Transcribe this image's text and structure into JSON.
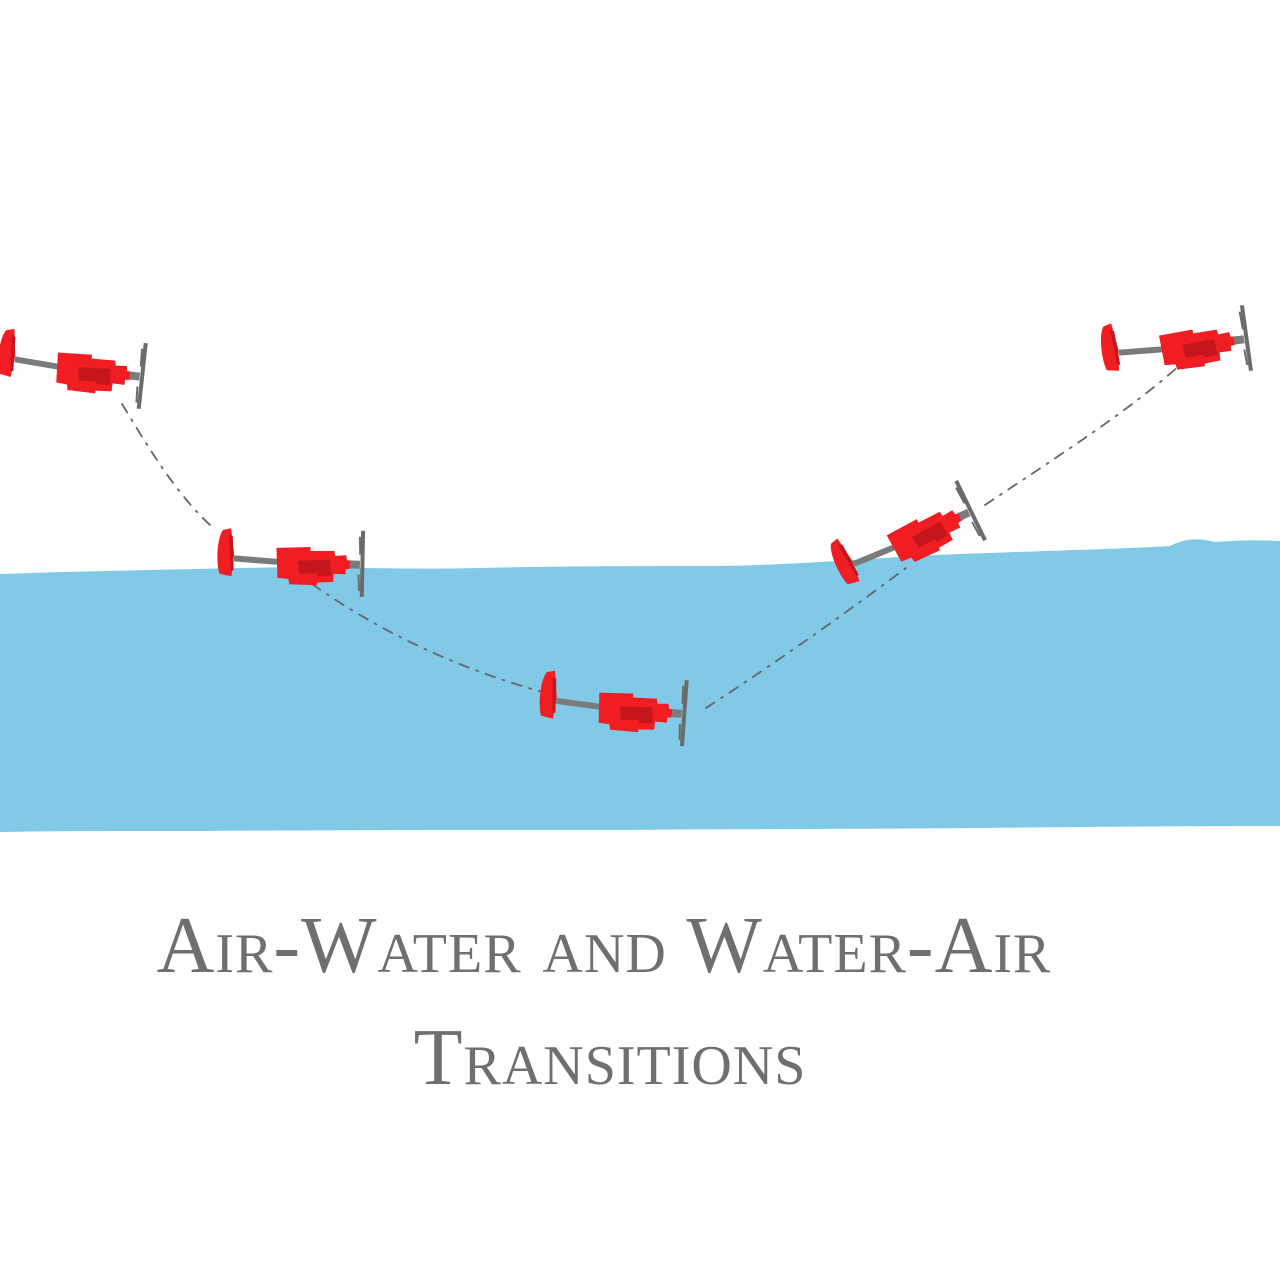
{
  "caption": {
    "line1": "Air-Water and Water-Air",
    "line2": "Transitions"
  },
  "colors": {
    "water": "#80c9e7",
    "vehicle_body": "#f01e22",
    "vehicle_dark": "#c5161b",
    "vehicle_shaft": "#7b7b7b",
    "propeller": "#6b6b6b",
    "trajectory": "#666666",
    "caption_text": "#6f6f6f"
  },
  "vehicles": [
    {
      "phase": "air-start",
      "rotation_deg": 7
    },
    {
      "phase": "water-entry",
      "rotation_deg": 2
    },
    {
      "phase": "submerged",
      "rotation_deg": 5
    },
    {
      "phase": "water-exit",
      "rotation_deg": -25
    },
    {
      "phase": "air-end",
      "rotation_deg": -7
    }
  ]
}
